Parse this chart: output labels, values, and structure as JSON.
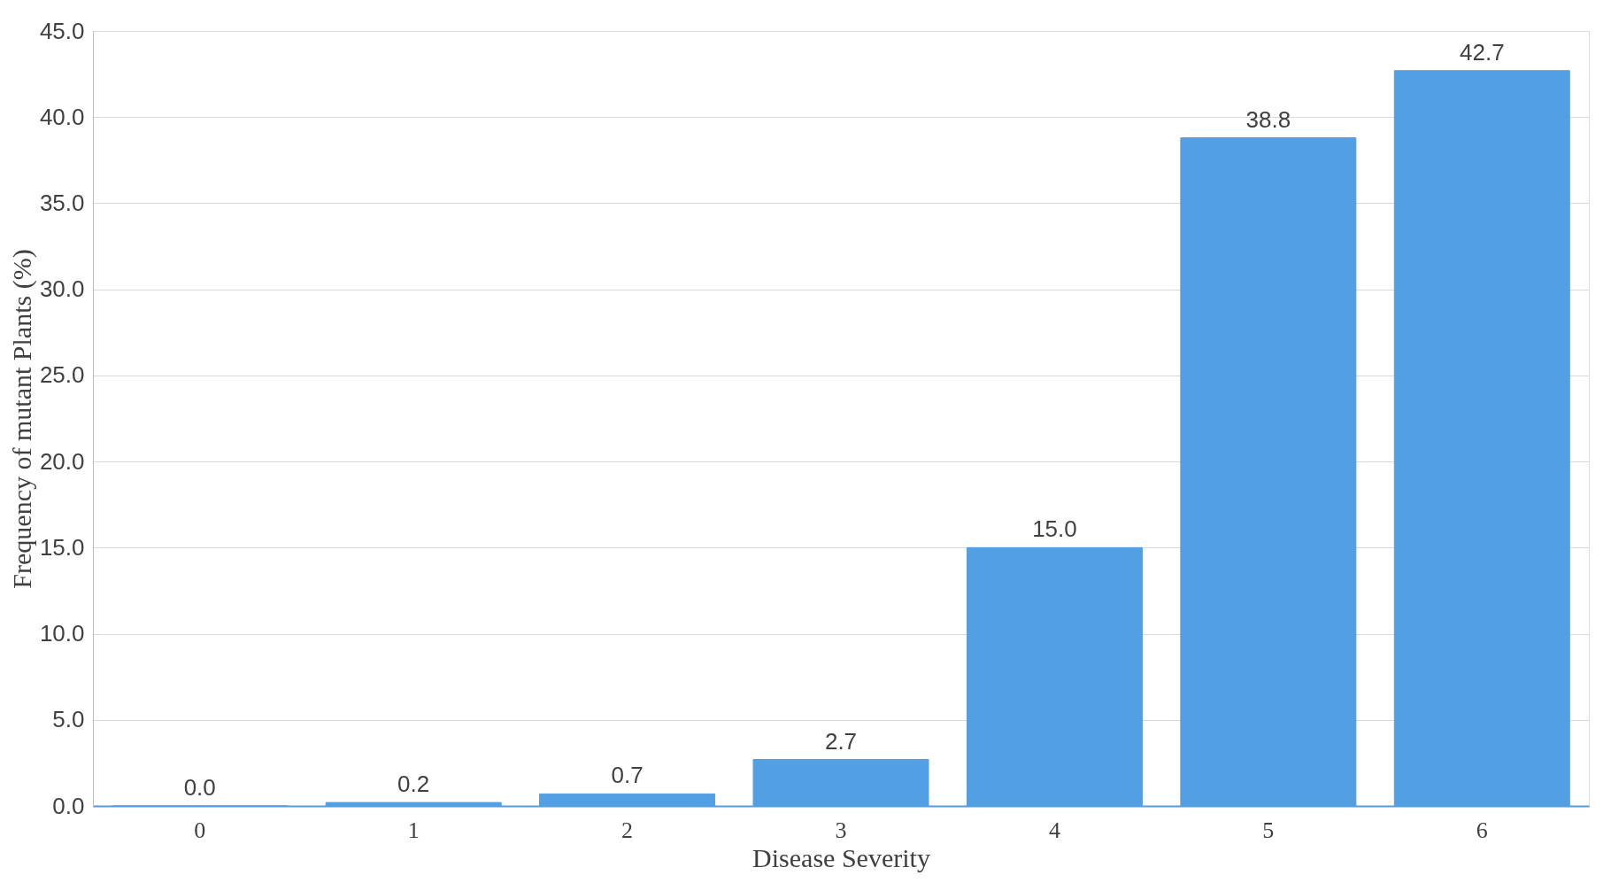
{
  "chart_data": {
    "type": "bar",
    "xlabel": "Disease Severity",
    "ylabel": "Frequency  of mutant Plants (%)",
    "categories": [
      "0",
      "1",
      "2",
      "3",
      "4",
      "5",
      "6"
    ],
    "values": [
      0.0,
      0.2,
      0.7,
      2.7,
      15.0,
      38.8,
      42.7
    ],
    "value_labels": [
      "0.0",
      "0.2",
      "0.7",
      "2.7",
      "15.0",
      "38.8",
      "42.7"
    ],
    "color": "#539fe3",
    "ylim": [
      0,
      45
    ],
    "yticks": [
      {
        "value": 0,
        "label": "0.0"
      },
      {
        "value": 5,
        "label": "5.0"
      },
      {
        "value": 10,
        "label": "10.0"
      },
      {
        "value": 15,
        "label": "15.0"
      },
      {
        "value": 20,
        "label": "20.0"
      },
      {
        "value": 25,
        "label": "25.0"
      },
      {
        "value": 30,
        "label": "30.0"
      },
      {
        "value": 35,
        "label": "35.0"
      },
      {
        "value": 40,
        "label": "40.0"
      },
      {
        "value": 45,
        "label": "45.0"
      }
    ],
    "grid": "y"
  }
}
